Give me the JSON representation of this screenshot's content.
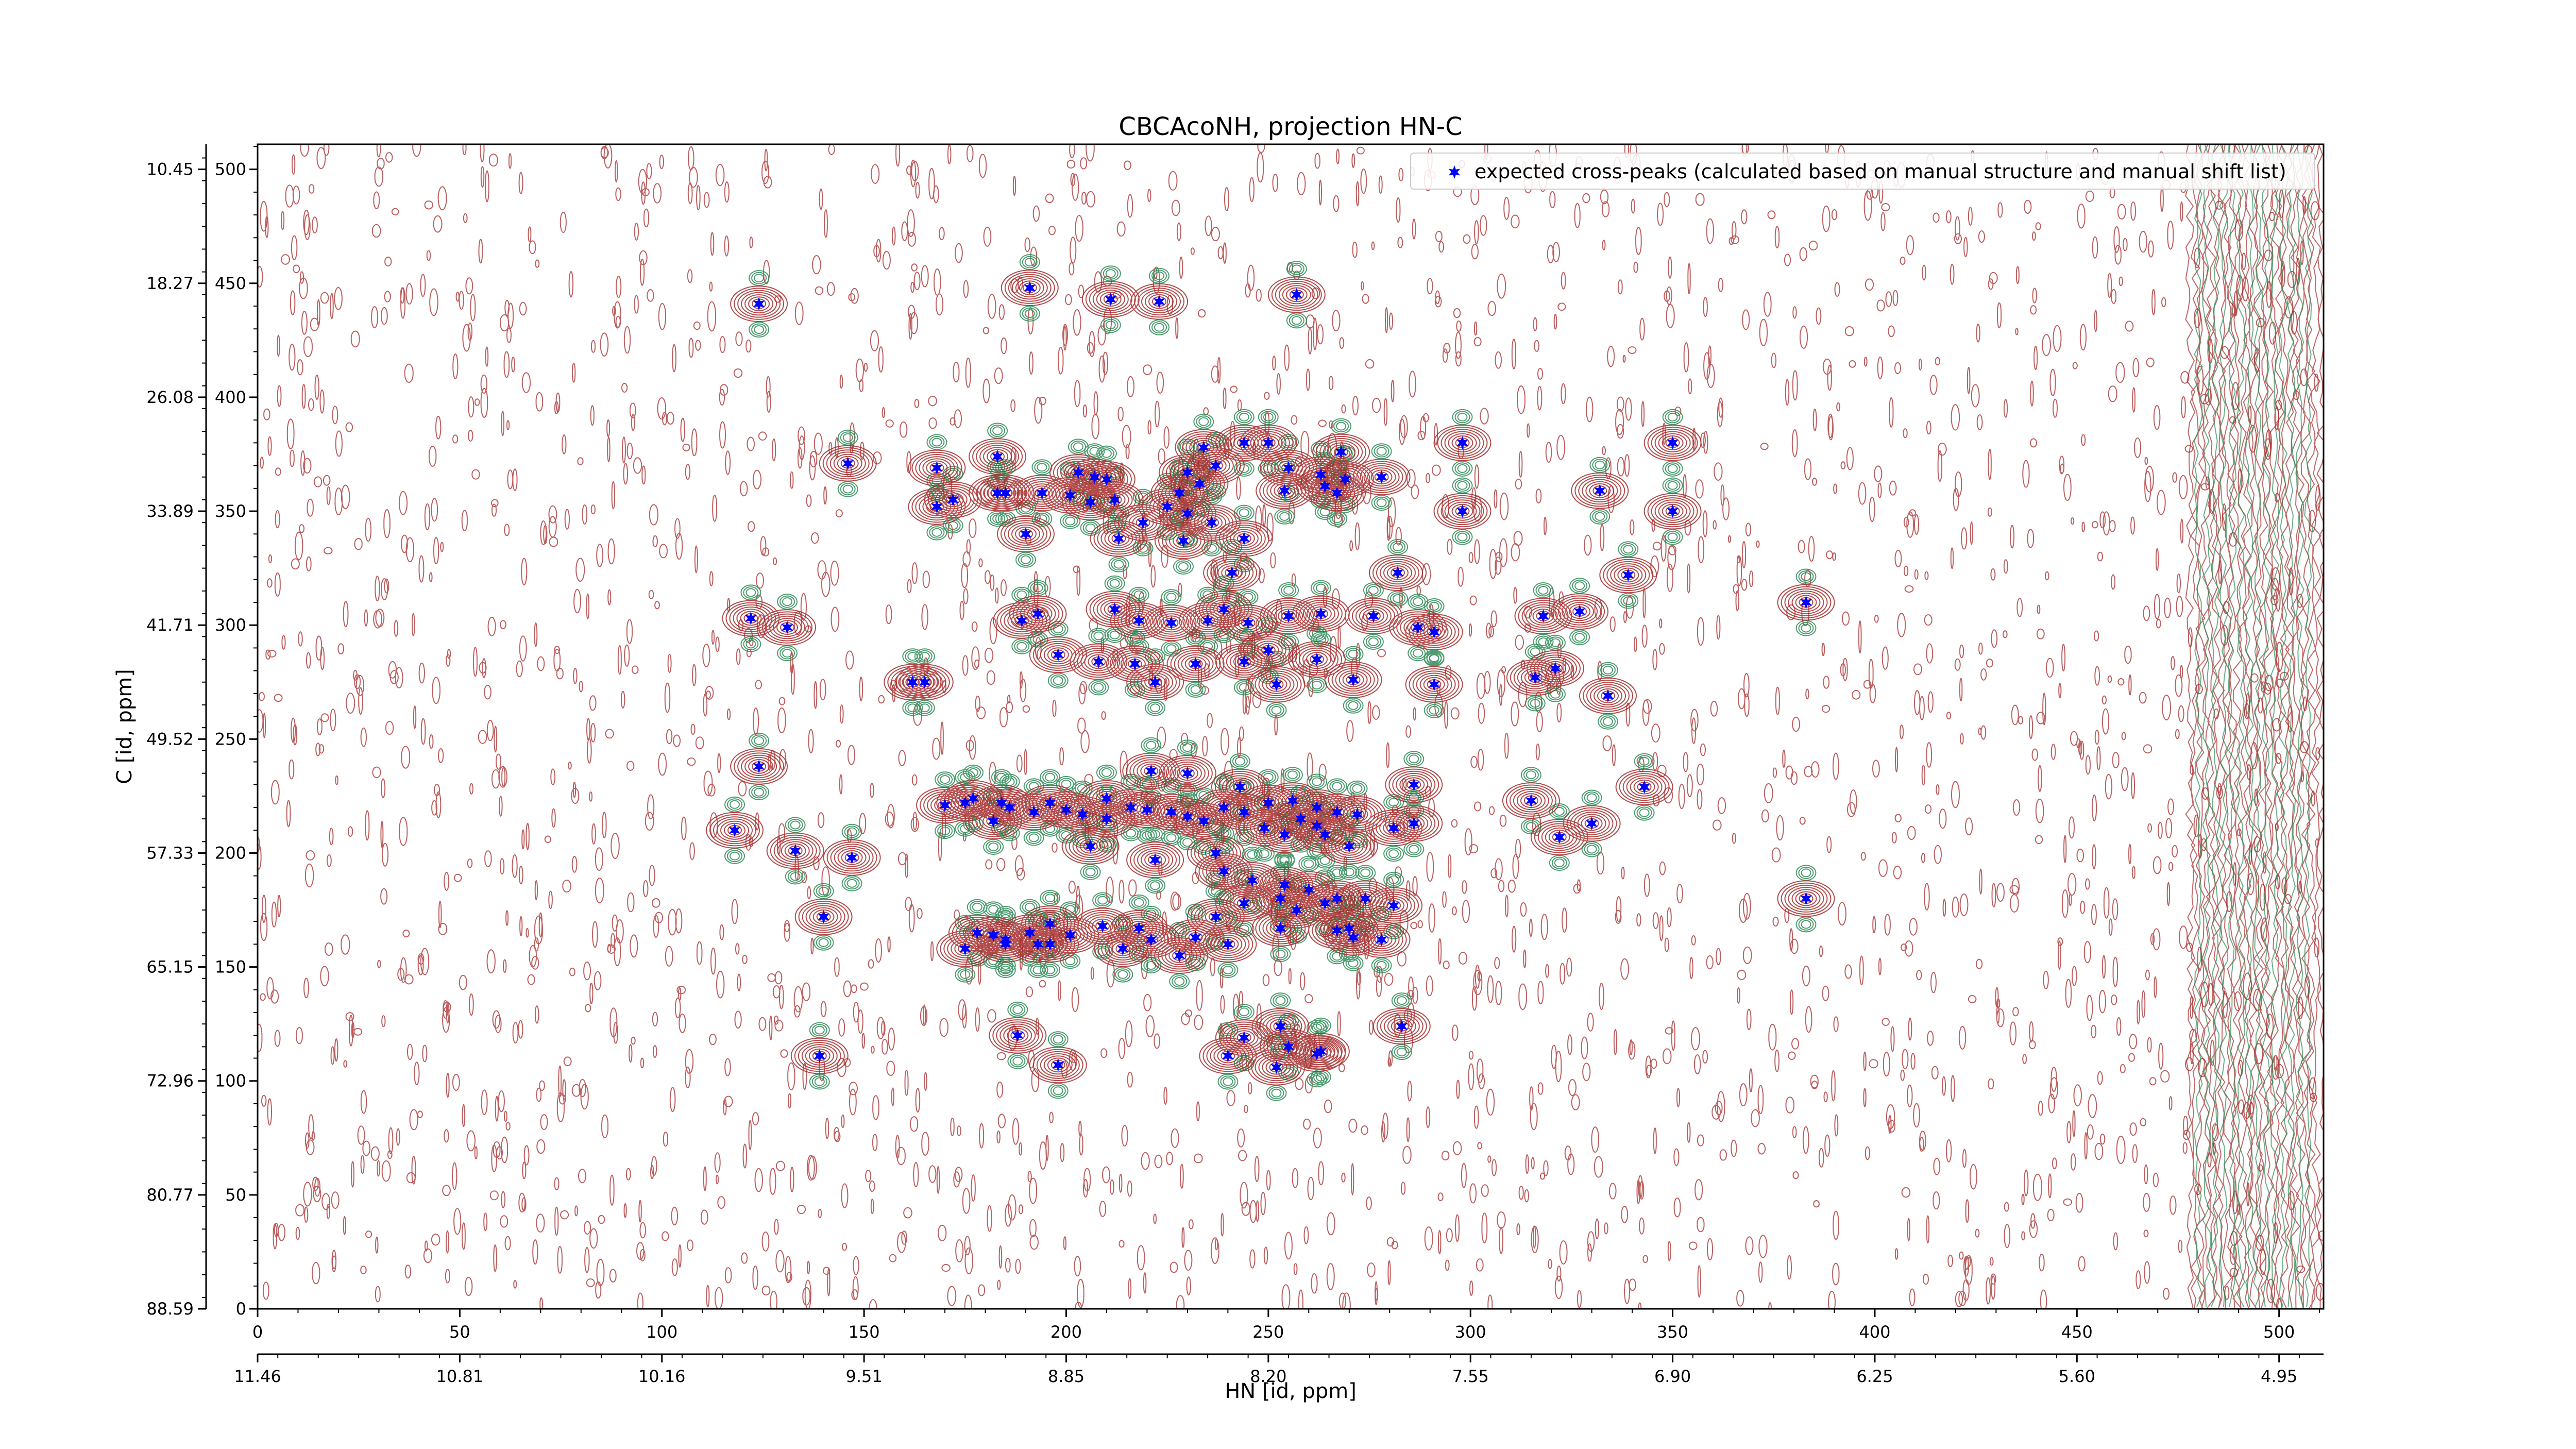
{
  "chart_data": {
    "type": "scatter",
    "title": "CBCAcoNH, projection HN-C",
    "xlabel": "HN [id, ppm]",
    "ylabel": "C [id, ppm]",
    "xlim": [
      0,
      511
    ],
    "ylim": [
      0,
      511
    ],
    "x_ticks": [
      0,
      50,
      100,
      150,
      200,
      250,
      300,
      350,
      400,
      450,
      500
    ],
    "y_ticks": [
      0,
      50,
      100,
      150,
      200,
      250,
      300,
      350,
      400,
      450,
      500
    ],
    "x_secondary_ticks": [
      "11.46",
      "10.81",
      "10.16",
      "9.51",
      "8.85",
      "8.20",
      "7.55",
      "6.90",
      "6.25",
      "5.60",
      "4.95"
    ],
    "y_secondary_ticks": [
      "10.45",
      "18.27",
      "26.08",
      "33.89",
      "41.71",
      "49.52",
      "57.33",
      "65.15",
      "72.96",
      "80.77",
      "88.59"
    ],
    "legend": {
      "placement": "top-right",
      "entry": "expected cross-peaks (calculated based on manual structure and manual shift list)"
    },
    "colors": {
      "marker": "#0000ff",
      "contour_positive": "#a52a2a",
      "contour_negative": "#2e8b57"
    },
    "series": [
      {
        "name": "expected cross-peaks (calculated based on manual structure and manual shift list)",
        "points": [
          [
            124,
            441
          ],
          [
            191,
            448
          ],
          [
            211,
            443
          ],
          [
            223,
            442
          ],
          [
            257,
            445
          ],
          [
            234,
            378
          ],
          [
            244,
            380
          ],
          [
            250,
            380
          ],
          [
            268,
            376
          ],
          [
            298,
            380
          ],
          [
            350,
            380
          ],
          [
            146,
            371
          ],
          [
            168,
            369
          ],
          [
            183,
            374
          ],
          [
            203,
            367
          ],
          [
            207,
            365
          ],
          [
            210,
            364
          ],
          [
            230,
            367
          ],
          [
            237,
            370
          ],
          [
            255,
            369
          ],
          [
            263,
            366
          ],
          [
            269,
            364
          ],
          [
            172,
            355
          ],
          [
            183,
            358
          ],
          [
            185,
            358
          ],
          [
            194,
            358
          ],
          [
            201,
            357
          ],
          [
            206,
            354
          ],
          [
            228,
            358
          ],
          [
            233,
            362
          ],
          [
            254,
            359
          ],
          [
            264,
            361
          ],
          [
            267,
            358
          ],
          [
            278,
            365
          ],
          [
            298,
            350
          ],
          [
            350,
            350
          ],
          [
            332,
            359
          ],
          [
            168,
            352
          ],
          [
            212,
            355
          ],
          [
            219,
            345
          ],
          [
            225,
            352
          ],
          [
            230,
            349
          ],
          [
            236,
            345
          ],
          [
            244,
            338
          ],
          [
            190,
            340
          ],
          [
            213,
            338
          ],
          [
            229,
            337
          ],
          [
            241,
            323
          ],
          [
            282,
            323
          ],
          [
            339,
            322
          ],
          [
            122,
            303
          ],
          [
            131,
            299
          ],
          [
            189,
            302
          ],
          [
            193,
            305
          ],
          [
            212,
            307
          ],
          [
            218,
            302
          ],
          [
            226,
            301
          ],
          [
            235,
            302
          ],
          [
            239,
            307
          ],
          [
            245,
            301
          ],
          [
            255,
            304
          ],
          [
            263,
            305
          ],
          [
            276,
            304
          ],
          [
            287,
            299
          ],
          [
            291,
            297
          ],
          [
            318,
            304
          ],
          [
            327,
            306
          ],
          [
            383,
            310
          ],
          [
            198,
            287
          ],
          [
            208,
            284
          ],
          [
            217,
            283
          ],
          [
            232,
            283
          ],
          [
            250,
            289
          ],
          [
            222,
            275
          ],
          [
            244,
            284
          ],
          [
            262,
            285
          ],
          [
            271,
            276
          ],
          [
            162,
            275
          ],
          [
            165,
            275
          ],
          [
            252,
            274
          ],
          [
            291,
            274
          ],
          [
            316,
            277
          ],
          [
            321,
            281
          ],
          [
            334,
            269
          ],
          [
            124,
            238
          ],
          [
            175,
            222
          ],
          [
            177,
            224
          ],
          [
            182,
            214
          ],
          [
            186,
            220
          ],
          [
            192,
            218
          ],
          [
            200,
            219
          ],
          [
            204,
            217
          ],
          [
            210,
            215
          ],
          [
            216,
            220
          ],
          [
            220,
            219
          ],
          [
            226,
            218
          ],
          [
            230,
            216
          ],
          [
            234,
            214
          ],
          [
            239,
            220
          ],
          [
            244,
            218
          ],
          [
            250,
            222
          ],
          [
            256,
            223
          ],
          [
            262,
            220
          ],
          [
            267,
            218
          ],
          [
            272,
            217
          ],
          [
            281,
            211
          ],
          [
            286,
            230
          ],
          [
            315,
            223
          ],
          [
            322,
            207
          ],
          [
            330,
            213
          ],
          [
            343,
            229
          ],
          [
            118,
            210
          ],
          [
            133,
            201
          ],
          [
            147,
            198
          ],
          [
            170,
            221
          ],
          [
            184,
            222
          ],
          [
            196,
            222
          ],
          [
            210,
            224
          ],
          [
            221,
            236
          ],
          [
            230,
            235
          ],
          [
            243,
            229
          ],
          [
            262,
            212
          ],
          [
            270,
            203
          ],
          [
            286,
            213
          ],
          [
            206,
            203
          ],
          [
            222,
            197
          ],
          [
            237,
            200
          ],
          [
            249,
            211
          ],
          [
            254,
            208
          ],
          [
            258,
            215
          ],
          [
            264,
            208
          ],
          [
            239,
            192
          ],
          [
            246,
            188
          ],
          [
            254,
            186
          ],
          [
            260,
            184
          ],
          [
            267,
            180
          ],
          [
            274,
            180
          ],
          [
            281,
            177
          ],
          [
            383,
            180
          ],
          [
            178,
            165
          ],
          [
            182,
            164
          ],
          [
            185,
            160
          ],
          [
            191,
            165
          ],
          [
            196,
            160
          ],
          [
            201,
            164
          ],
          [
            214,
            158
          ],
          [
            228,
            155
          ],
          [
            240,
            160
          ],
          [
            253,
            167
          ],
          [
            267,
            166
          ],
          [
            271,
            163
          ],
          [
            140,
            172
          ],
          [
            175,
            158
          ],
          [
            185,
            162
          ],
          [
            193,
            160
          ],
          [
            196,
            169
          ],
          [
            209,
            168
          ],
          [
            218,
            167
          ],
          [
            221,
            162
          ],
          [
            232,
            163
          ],
          [
            237,
            172
          ],
          [
            244,
            178
          ],
          [
            253,
            180
          ],
          [
            257,
            175
          ],
          [
            264,
            178
          ],
          [
            270,
            167
          ],
          [
            278,
            162
          ],
          [
            188,
            120
          ],
          [
            244,
            119
          ],
          [
            253,
            124
          ],
          [
            255,
            115
          ],
          [
            263,
            113
          ],
          [
            283,
            124
          ],
          [
            139,
            111
          ],
          [
            198,
            107
          ],
          [
            240,
            111
          ],
          [
            252,
            106
          ],
          [
            262,
            112
          ]
        ]
      }
    ]
  }
}
